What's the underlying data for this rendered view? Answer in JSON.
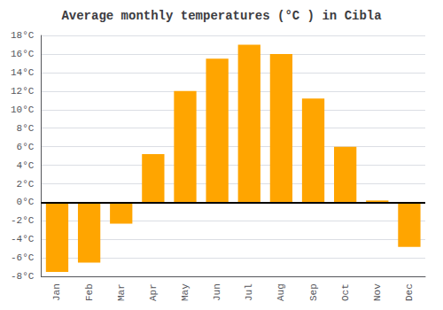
{
  "chart_data": {
    "type": "bar",
    "title": "Average monthly temperatures (°C ) in Cibla",
    "categories": [
      "Jan",
      "Feb",
      "Mar",
      "Apr",
      "May",
      "Jun",
      "Jul",
      "Aug",
      "Sep",
      "Oct",
      "Nov",
      "Dec"
    ],
    "values": [
      -7.5,
      -6.5,
      -2.3,
      5.2,
      12.0,
      15.5,
      17.0,
      16.0,
      11.2,
      6.0,
      0.2,
      -4.8
    ],
    "color": "#FFA500",
    "ylim": [
      -8,
      18
    ],
    "yticks": [
      {
        "value": -8,
        "label": "-8°C"
      },
      {
        "value": -6,
        "label": "-6°C"
      },
      {
        "value": -4,
        "label": "-4°C"
      },
      {
        "value": -2,
        "label": "-2°C"
      },
      {
        "value": 0,
        "label": "0°C"
      },
      {
        "value": 2,
        "label": "2°C"
      },
      {
        "value": 4,
        "label": "4°C"
      },
      {
        "value": 6,
        "label": "6°C"
      },
      {
        "value": 8,
        "label": "8°C"
      },
      {
        "value": 10,
        "label": "10°C"
      },
      {
        "value": 12,
        "label": "12°C"
      },
      {
        "value": 14,
        "label": "14°C"
      },
      {
        "value": 16,
        "label": "16°C"
      },
      {
        "value": 18,
        "label": "18°C"
      }
    ],
    "grid": true
  }
}
